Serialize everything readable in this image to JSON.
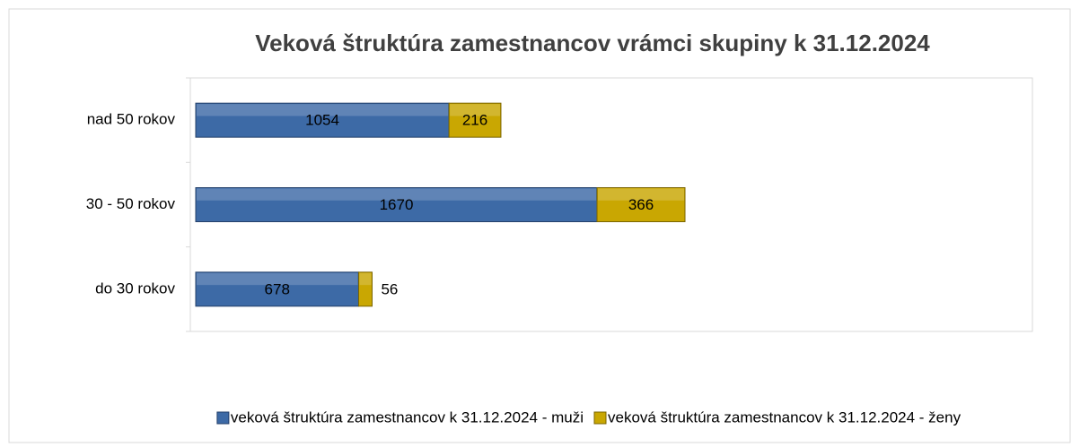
{
  "chart_data": {
    "type": "stacked_barh",
    "title": "Veková štruktúra zamestnancov vrámci skupiny k 31.12.2024",
    "categories": [
      "nad 50 rokov",
      "30 - 50 rokov",
      "do 30 rokov"
    ],
    "series": [
      {
        "name": "veková štruktúra zamestnancov k 31.12.2024 - muži",
        "color": "#3d6aa6",
        "values": [
          1054,
          1670,
          678
        ]
      },
      {
        "name": "veková štruktúra zamestnancov k 31.12.2024 - ženy",
        "color": "#c9a702",
        "values": [
          216,
          366,
          56
        ]
      }
    ],
    "legend": "bottom"
  }
}
